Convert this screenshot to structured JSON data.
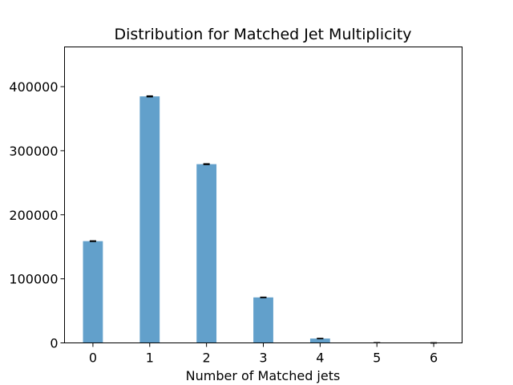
{
  "chart_data": {
    "type": "bar",
    "title": "Distribution for Matched Jet Multiplicity",
    "xlabel": "Number of Matched jets",
    "ylabel": "",
    "categories": [
      "0",
      "1",
      "2",
      "3",
      "4",
      "5",
      "6"
    ],
    "values": [
      158800,
      384800,
      279000,
      71000,
      6800,
      300,
      10
    ],
    "errors": [
      400,
      620,
      530,
      270,
      80,
      17,
      3
    ],
    "ylim": [
      0,
      462000
    ],
    "yticks": [
      0,
      100000,
      200000,
      300000,
      400000
    ],
    "ytick_labels": [
      "0",
      "100000",
      "200000",
      "300000",
      "400000"
    ],
    "grid": false,
    "bar_color": "#62a0cb",
    "error_color": "#000000"
  }
}
